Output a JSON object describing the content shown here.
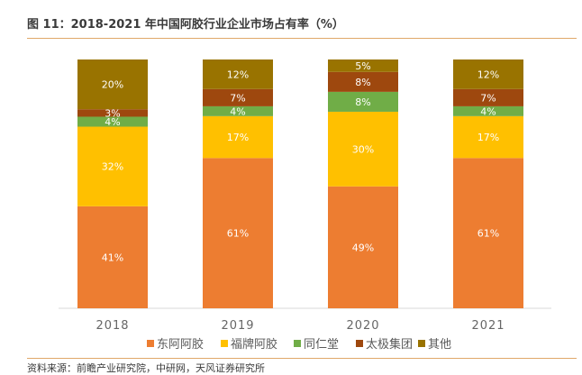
{
  "header": {
    "title": "图 11：2018-2021 年中国阿胶行业企业市场占有率（%）"
  },
  "footer": {
    "source": "资料来源：前瞻产业研究院，中研网，天风证券研究所"
  },
  "chart_data": {
    "type": "bar",
    "stacked": true,
    "percent": true,
    "categories": [
      "2018",
      "2019",
      "2020",
      "2021"
    ],
    "series": [
      {
        "name": "东阿阿胶",
        "color": "#ED7D31",
        "values": [
          41,
          61,
          49,
          61
        ],
        "labels": [
          "41%",
          "61%",
          "49%",
          "61%"
        ]
      },
      {
        "name": "福牌阿胶",
        "color": "#FFC000",
        "values": [
          32,
          17,
          30,
          17
        ],
        "labels": [
          "32%",
          "17%",
          "30%",
          "17%"
        ]
      },
      {
        "name": "同仁堂",
        "color": "#70AD47",
        "values": [
          4,
          4,
          8,
          4
        ],
        "labels": [
          "4%",
          "4%",
          "8%",
          "4%"
        ]
      },
      {
        "name": "太极集团",
        "color": "#9E480E",
        "values": [
          3,
          7,
          8,
          7
        ],
        "labels": [
          "3%",
          "7%",
          "8%",
          "7%"
        ]
      },
      {
        "name": "其他",
        "color": "#997300",
        "values": [
          20,
          12,
          5,
          12
        ],
        "labels": [
          "20%",
          "12%",
          "5%",
          "12%"
        ]
      }
    ],
    "ylim": [
      0,
      100
    ],
    "legend_position": "bottom"
  }
}
